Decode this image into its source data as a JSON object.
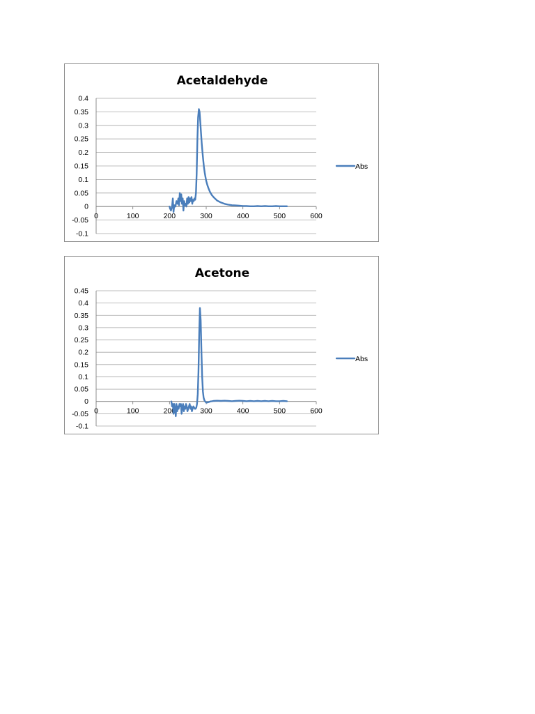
{
  "chart_data": [
    {
      "type": "line",
      "title": "Acetaldehyde",
      "xlim": [
        0,
        600
      ],
      "ylim": [
        -0.1,
        0.4
      ],
      "x_ticks": [
        "0",
        "100",
        "200",
        "300",
        "400",
        "500",
        "600"
      ],
      "y_ticks": [
        "0.4",
        "0.35",
        "0.3",
        "0.25",
        "0.2",
        "0.15",
        "0.1",
        "0.05",
        "0",
        "-0.05",
        "-0.1"
      ],
      "grid": true,
      "legend": "right",
      "series": [
        {
          "name": "Abs",
          "color": "#4a7ebb",
          "x": [
            200,
            204,
            207,
            209,
            211,
            213,
            216,
            219,
            222,
            224,
            226,
            228,
            230,
            232,
            234,
            236,
            238,
            240,
            242,
            244,
            246,
            248,
            250,
            252,
            254,
            256,
            258,
            260,
            262,
            264,
            266,
            268,
            270,
            272,
            274,
            276,
            278,
            280,
            282,
            284,
            286,
            288,
            290,
            292,
            294,
            296,
            298,
            300,
            303,
            306,
            310,
            315,
            320,
            325,
            330,
            340,
            350,
            360,
            370,
            380,
            390,
            400,
            410,
            420,
            430,
            440,
            450,
            460,
            470,
            480,
            490,
            500,
            510,
            520
          ],
          "y": [
            0,
            -0.015,
            0,
            0.03,
            -0.02,
            0.005,
            0,
            0.02,
            0.01,
            0.03,
            0.005,
            0.05,
            0.02,
            0.045,
            0.01,
            0.03,
            -0.015,
            0.02,
            0.005,
            0.01,
            0,
            0.03,
            0.01,
            0.035,
            0.015,
            0.03,
            0.02,
            0.035,
            0.01,
            0.025,
            0.02,
            0.03,
            0.025,
            0.05,
            0.12,
            0.25,
            0.33,
            0.36,
            0.35,
            0.31,
            0.27,
            0.23,
            0.2,
            0.17,
            0.145,
            0.125,
            0.11,
            0.095,
            0.08,
            0.068,
            0.055,
            0.043,
            0.035,
            0.028,
            0.022,
            0.015,
            0.01,
            0.007,
            0.005,
            0.004,
            0.003,
            0.002,
            0.002,
            0.001,
            0.001,
            0.002,
            0.001,
            0.002,
            0.001,
            0.001,
            0.002,
            0.001,
            0.001,
            0.001
          ]
        }
      ]
    },
    {
      "type": "line",
      "title": "Acetone",
      "xlim": [
        0,
        600
      ],
      "ylim": [
        -0.1,
        0.45
      ],
      "x_ticks": [
        "0",
        "100",
        "200",
        "300",
        "400",
        "500",
        "600"
      ],
      "y_ticks": [
        "0.45",
        "0.4",
        "0.35",
        "0.3",
        "0.25",
        "0.2",
        "0.15",
        "0.1",
        "0.05",
        "0",
        "-0.05",
        "-0.1"
      ],
      "grid": true,
      "legend": "right",
      "series": [
        {
          "name": "Abs",
          "color": "#4a7ebb",
          "x": [
            205,
            207,
            209,
            211,
            213,
            215,
            217,
            219,
            221,
            223,
            225,
            227,
            229,
            231,
            233,
            235,
            237,
            239,
            241,
            243,
            245,
            247,
            249,
            251,
            253,
            255,
            257,
            259,
            261,
            263,
            265,
            267,
            269,
            271,
            273,
            275,
            277,
            279,
            281,
            283,
            285,
            287,
            289,
            291,
            293,
            295,
            297,
            299,
            301,
            303,
            305,
            308,
            312,
            316,
            320,
            330,
            340,
            350,
            360,
            370,
            380,
            390,
            400,
            410,
            420,
            430,
            440,
            450,
            460,
            470,
            480,
            490,
            500,
            510,
            520
          ],
          "y": [
            0,
            -0.02,
            -0.01,
            -0.05,
            -0.01,
            -0.03,
            -0.06,
            -0.01,
            -0.04,
            -0.02,
            -0.03,
            -0.01,
            -0.02,
            -0.01,
            -0.05,
            -0.02,
            -0.01,
            -0.04,
            -0.02,
            -0.03,
            -0.01,
            -0.02,
            -0.04,
            -0.03,
            -0.02,
            -0.01,
            -0.03,
            -0.02,
            -0.04,
            -0.03,
            -0.02,
            -0.025,
            -0.03,
            -0.03,
            -0.025,
            -0.01,
            0.03,
            0.12,
            0.28,
            0.38,
            0.33,
            0.2,
            0.1,
            0.04,
            0.015,
            0.005,
            0,
            -0.003,
            -0.005,
            -0.004,
            -0.003,
            -0.002,
            0,
            0.001,
            0.002,
            0.003,
            0.002,
            0.003,
            0.002,
            0.001,
            0.002,
            0.003,
            0.002,
            0.001,
            0.002,
            0.001,
            0.002,
            0.001,
            0.002,
            0.001,
            0.002,
            0.001,
            0.001,
            0.002,
            0.001
          ]
        }
      ]
    }
  ]
}
